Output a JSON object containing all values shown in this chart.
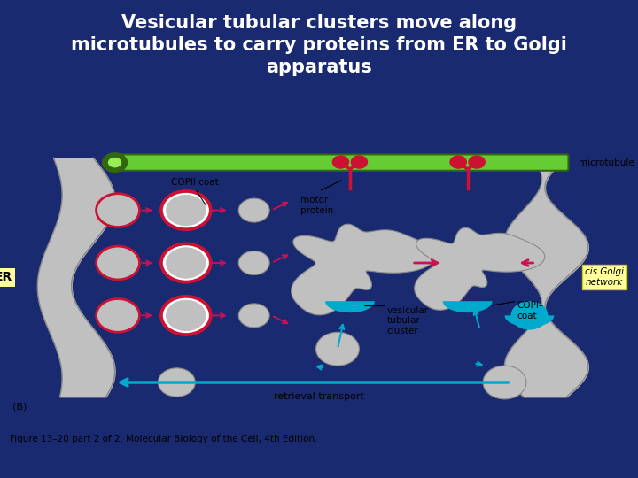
{
  "title": "Vesicular tubular clusters move along\nmicrotubules to carry proteins from ER to Golgi\napparatus",
  "title_color": "#FFFFFF",
  "title_fontsize": 15,
  "fig_bg": "#1a2a70",
  "diagram_bg": "#FFFFFF",
  "caption": "Figure 13–20 part 2 of 2. Molecular Biology of the Cell, 4th Edition.",
  "labels": {
    "ER": "ER",
    "COPII": "COPII coat",
    "motor": "motor\nprotein",
    "microtubule": "microtubule",
    "vesicular": "vesicular\ntubular\ncluster",
    "retrieval": "retrieval transport",
    "COPI": "COPI–\ncoat",
    "cis_golgi": "cis Golgi\nnetwork",
    "B": "(B)"
  },
  "pink": "#CC1155",
  "cyan": "#00AACC",
  "green_light": "#66CC33",
  "green_dark": "#336611",
  "gray": "#C0C0C0",
  "gray_dark": "#888888",
  "red_coat": "#CC1133",
  "yellow_bg": "#FFFF99",
  "yellow_border": "#CCCC00"
}
